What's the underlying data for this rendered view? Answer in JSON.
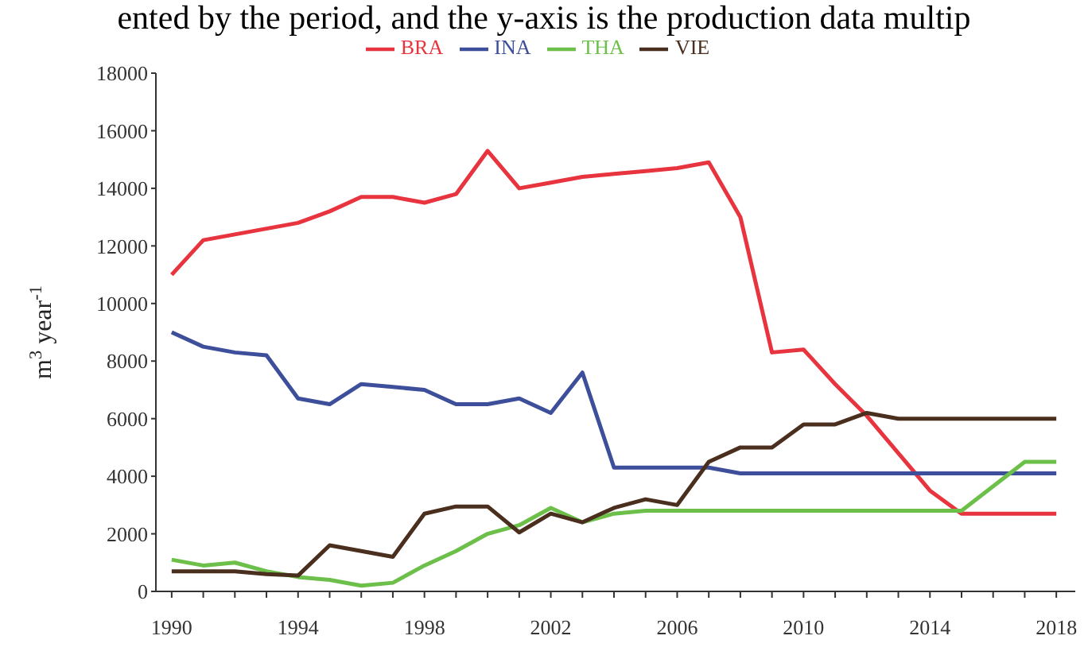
{
  "chart_data": {
    "type": "line",
    "annotations": [
      "ented by the period, and the y-axis is the production data multip"
    ],
    "ylabel": "m$^{3}$ year$^{-1}$",
    "x": [
      1990,
      1991,
      1992,
      1993,
      1994,
      1995,
      1996,
      1997,
      1998,
      1999,
      2000,
      2001,
      2002,
      2003,
      2004,
      2005,
      2006,
      2007,
      2008,
      2009,
      2010,
      2011,
      2012,
      2013,
      2014,
      2015,
      2016,
      2017,
      2018
    ],
    "series": [
      {
        "name": "BRA",
        "color": "#e8343f",
        "values": [
          11000,
          12200,
          12400,
          12600,
          12800,
          13200,
          13700,
          13700,
          13500,
          13800,
          15300,
          14000,
          14200,
          14400,
          14500,
          14600,
          14700,
          14900,
          13000,
          8300,
          8400,
          7200,
          6100,
          4800,
          3500,
          2700,
          2700,
          2700,
          2700
        ]
      },
      {
        "name": "INA",
        "color": "#3d4f9a",
        "values": [
          9000,
          8500,
          8300,
          8200,
          6700,
          6500,
          7200,
          7100,
          7000,
          6500,
          6500,
          6700,
          6200,
          7600,
          4300,
          4300,
          4300,
          4300,
          4100,
          4100,
          4100,
          4100,
          4100,
          4100,
          4100,
          4100,
          4100,
          4100,
          4100
        ]
      },
      {
        "name": "THA",
        "color": "#6cc04a",
        "values": [
          1100,
          900,
          1000,
          700,
          500,
          400,
          200,
          300,
          900,
          1400,
          2000,
          2300,
          2900,
          2400,
          2700,
          2800,
          2800,
          2800,
          2800,
          2800,
          2800,
          2800,
          2800,
          2800,
          2800,
          2800,
          3650,
          4500,
          4500
        ]
      },
      {
        "name": "VIE",
        "color": "#4a2e1e",
        "values": [
          700,
          700,
          700,
          600,
          550,
          1600,
          1400,
          1200,
          2700,
          2950,
          2950,
          2050,
          2700,
          2400,
          2900,
          3200,
          3000,
          4500,
          5000,
          5000,
          5800,
          5800,
          6200,
          6000,
          6000,
          6000,
          6000,
          6000,
          6000
        ]
      }
    ],
    "xlim": [
      1989.5,
      2018.6
    ],
    "xticks": [
      1990,
      {
        "value": 1991,
        "label": null
      },
      {
        "value": 1992,
        "label": null
      },
      {
        "value": 1993,
        "label": null
      },
      1994,
      {
        "value": 1995,
        "label": null
      },
      {
        "value": 1996,
        "label": null
      },
      {
        "value": 1997,
        "label": null
      },
      1998,
      {
        "value": 1999,
        "label": null
      },
      {
        "value": 2000,
        "label": null
      },
      {
        "value": 2001,
        "label": null
      },
      2002,
      {
        "value": 2003,
        "label": null
      },
      {
        "value": 2004,
        "label": null
      },
      {
        "value": 2005,
        "label": null
      },
      2006,
      {
        "value": 2007,
        "label": null
      },
      {
        "value": 2008,
        "label": null
      },
      {
        "value": 2009,
        "label": null
      },
      2010,
      {
        "value": 2011,
        "label": null
      },
      {
        "value": 2012,
        "label": null
      },
      {
        "value": 2013,
        "label": null
      },
      2014,
      {
        "value": 2015,
        "label": null
      },
      {
        "value": 2016,
        "label": null
      },
      {
        "value": 2017,
        "label": null
      },
      2018
    ],
    "ylim": [
      0,
      18000
    ],
    "yticks": [
      0,
      2000,
      4000,
      6000,
      8000,
      10000,
      12000,
      14000,
      16000,
      18000
    ],
    "grid": false,
    "legend": "top",
    "marker": "none",
    "line_style": "solid"
  }
}
